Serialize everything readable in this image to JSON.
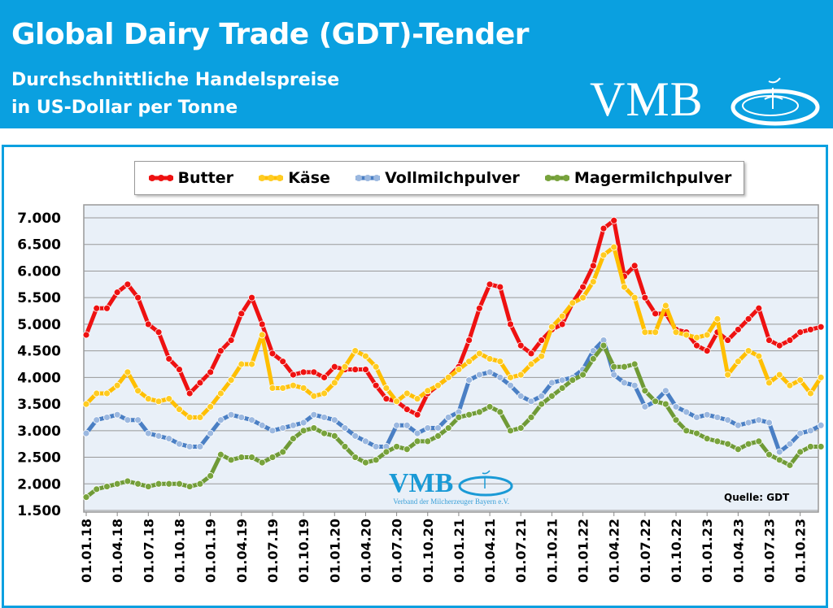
{
  "header": {
    "title": "Global Dairy Trade (GDT)-Tender",
    "subtitle_line1": "Durchschnittliche Handelspreise",
    "subtitle_line2": "in US-Dollar per Tonne",
    "logo_text": "VMB"
  },
  "watermark": {
    "logo_text": "VMB",
    "subtitle": "Verband der Milcherzeuger Bayern e.V."
  },
  "source": "Quelle:  GDT",
  "colors": {
    "header": "#0aa0e0",
    "plot_bg": "#e9f0f8"
  },
  "chart_data": {
    "type": "line",
    "legend_position": "top",
    "grid": true,
    "ylim": [
      1500,
      7000
    ],
    "yticks": [
      "1.500",
      "2.000",
      "2.500",
      "3.000",
      "3.500",
      "4.000",
      "4.500",
      "5.000",
      "5.500",
      "6.000",
      "6.500",
      "7.000"
    ],
    "ytick_values": [
      1500,
      2000,
      2500,
      3000,
      3500,
      4000,
      4500,
      5000,
      5500,
      6000,
      6500,
      7000
    ],
    "xtick_labels": [
      "01.01.18",
      "01.04.18",
      "01.07.18",
      "01.10.18",
      "01.01.19",
      "01.04.19",
      "01.07.19",
      "01.10.19",
      "01.01.20",
      "01.04.20",
      "01.07.20",
      "01.10.20",
      "01.01.21",
      "01.04.21",
      "01.07.21",
      "01.10.21",
      "01.01.22",
      "01.04.22",
      "01.07.22",
      "01.10.22",
      "01.01.23",
      "01.04.23",
      "01.07.23",
      "01.10.23"
    ],
    "x_start": "2018-01",
    "x_step": "monthly",
    "series": [
      {
        "name": "Butter",
        "color": "#ee1111",
        "marker": "#ee1111",
        "values": [
          4800,
          5300,
          5300,
          5600,
          5750,
          5500,
          5000,
          4850,
          4350,
          4150,
          3700,
          3900,
          4100,
          4500,
          4700,
          5200,
          5500,
          5000,
          4450,
          4300,
          4050,
          4100,
          4100,
          4000,
          4200,
          4150,
          4150,
          4150,
          3850,
          3600,
          3550,
          3400,
          3300,
          3700,
          3850,
          4000,
          4200,
          4700,
          5300,
          5750,
          5700,
          5000,
          4600,
          4450,
          4700,
          4900,
          5000,
          5400,
          5700,
          6100,
          6800,
          6950,
          5900,
          6100,
          5500,
          5200,
          5200,
          4900,
          4850,
          4600,
          4500,
          4850,
          4700,
          4900,
          5100,
          5300,
          4700,
          4600,
          4700,
          4850,
          4900,
          4950
        ]
      },
      {
        "name": "Käse",
        "color": "#ffbf00",
        "marker": "#ffcc22",
        "values": [
          3500,
          3700,
          3700,
          3850,
          4100,
          3750,
          3600,
          3550,
          3600,
          3400,
          3250,
          3250,
          3450,
          3700,
          3950,
          4250,
          4250,
          4800,
          3800,
          3800,
          3850,
          3800,
          3650,
          3700,
          3900,
          4200,
          4500,
          4400,
          4200,
          3800,
          3550,
          3700,
          3600,
          3750,
          3850,
          4000,
          4150,
          4300,
          4450,
          4350,
          4300,
          4000,
          4050,
          4250,
          4400,
          4950,
          5150,
          5400,
          5500,
          5800,
          6300,
          6450,
          5700,
          5500,
          4850,
          4850,
          5350,
          4850,
          4800,
          4750,
          4800,
          5100,
          4050,
          4300,
          4500,
          4400,
          3900,
          4050,
          3850,
          3950,
          3700,
          4000
        ]
      },
      {
        "name": "Vollmilchpulver",
        "color": "#4a7fc4",
        "marker": "#9bb8e0",
        "values": [
          2950,
          3200,
          3250,
          3300,
          3200,
          3200,
          2950,
          2900,
          2850,
          2750,
          2700,
          2700,
          2950,
          3200,
          3300,
          3250,
          3200,
          3100,
          3000,
          3050,
          3100,
          3150,
          3300,
          3250,
          3200,
          3050,
          2900,
          2800,
          2700,
          2700,
          3100,
          3100,
          2950,
          3050,
          3050,
          3250,
          3350,
          3950,
          4050,
          4100,
          4000,
          3850,
          3650,
          3550,
          3650,
          3900,
          3950,
          4000,
          4150,
          4500,
          4700,
          4050,
          3900,
          3850,
          3450,
          3550,
          3750,
          3450,
          3350,
          3250,
          3300,
          3250,
          3200,
          3100,
          3150,
          3200,
          3150,
          2600,
          2750,
          2950,
          3000,
          3100
        ]
      },
      {
        "name": "Magermilchpulver",
        "color": "#6f9a36",
        "marker": "#78a33c",
        "values": [
          1750,
          1900,
          1950,
          2000,
          2050,
          2000,
          1950,
          2000,
          2000,
          2000,
          1950,
          2000,
          2150,
          2550,
          2450,
          2500,
          2500,
          2400,
          2500,
          2600,
          2850,
          3000,
          3050,
          2950,
          2900,
          2700,
          2500,
          2400,
          2450,
          2600,
          2700,
          2650,
          2800,
          2800,
          2900,
          3050,
          3250,
          3300,
          3350,
          3450,
          3350,
          3000,
          3050,
          3250,
          3500,
          3650,
          3800,
          3950,
          4050,
          4350,
          4600,
          4200,
          4200,
          4250,
          3750,
          3550,
          3500,
          3200,
          3000,
          2950,
          2850,
          2800,
          2750,
          2650,
          2750,
          2800,
          2550,
          2450,
          2350,
          2600,
          2700,
          2700
        ]
      }
    ]
  }
}
